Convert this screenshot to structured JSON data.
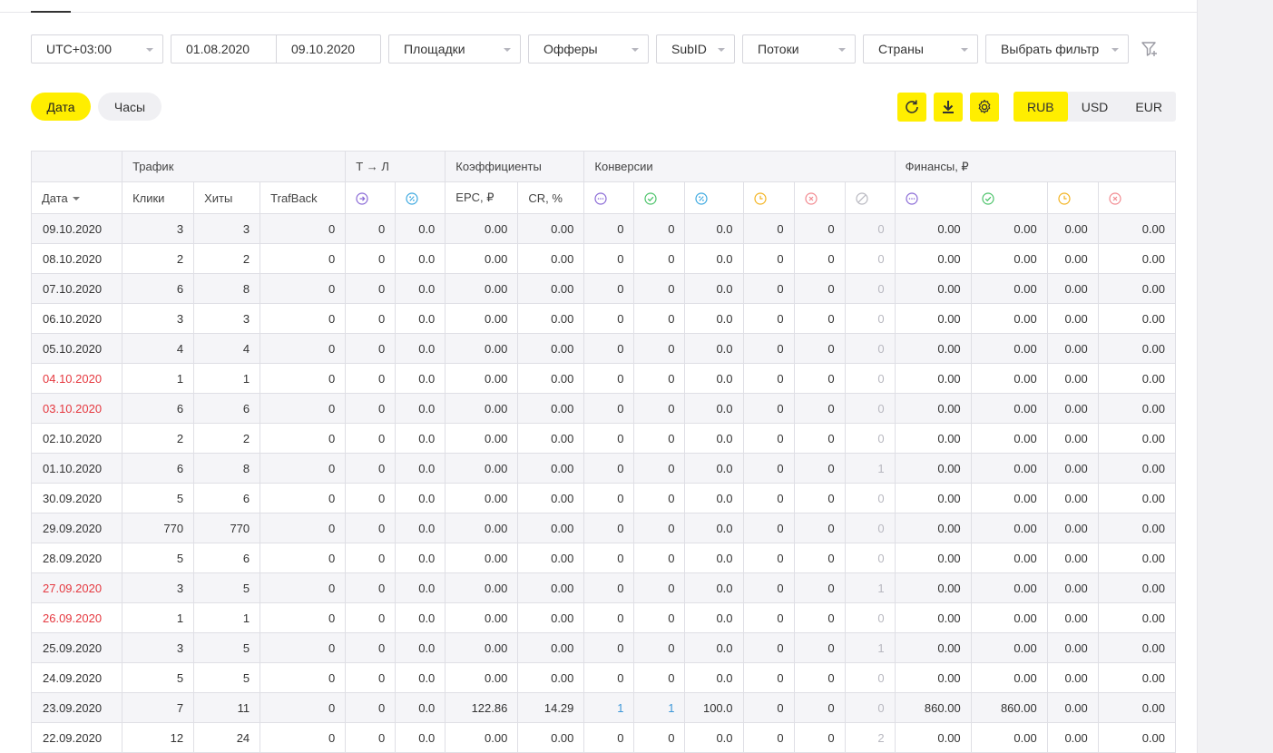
{
  "filters": {
    "timezone": "UTC+03:00",
    "date_from": "01.08.2020",
    "date_to": "09.10.2020",
    "sites": "Площадки",
    "offers": "Офферы",
    "subid": "SubID",
    "streams": "Потоки",
    "countries": "Страны",
    "choose_filter": "Выбрать фильтр"
  },
  "grouping": {
    "date": "Дата",
    "hours": "Часы"
  },
  "currency": {
    "rub": "RUB",
    "usd": "USD",
    "eur": "EUR",
    "selected": "RUB"
  },
  "colors": {
    "accent": "#ffee00",
    "weekend": "#e5383f",
    "link": "#3d97d8",
    "purple": "#8a6ad6",
    "green": "#4cc36a",
    "blue": "#3da9e0",
    "orange": "#f3b320",
    "red": "#f28a90",
    "grey": "#b8b8c0"
  },
  "table": {
    "groups": {
      "traffic": "Трафик",
      "tl": "Т → Л",
      "coef": "Коэффициенты",
      "conv": "Конверсии",
      "finance": "Финансы, ₽"
    },
    "headers": {
      "date": "Дата",
      "clicks": "Клики",
      "hits": "Хиты",
      "trafback": "TrafBack",
      "epc": "EPC, ₽",
      "cr": "CR, %"
    },
    "header_icons": [
      "arrow-right-circle-icon",
      "percent-circle-icon",
      "dots-circle-icon",
      "check-circle-icon",
      "percent-circle-icon",
      "clock-circle-icon",
      "cross-circle-icon",
      "ban-circle-icon",
      "dots-circle-icon",
      "check-circle-icon",
      "clock-circle-icon",
      "cross-circle-icon"
    ],
    "rows": [
      {
        "date": "09.10.2020",
        "weekend": false,
        "cells": [
          "3",
          "3",
          "0",
          "0",
          "0.0",
          "0.00",
          "0.00",
          "0",
          "0",
          "0.0",
          "0",
          "0",
          "0",
          "0.00",
          "0.00",
          "0.00",
          "0.00"
        ]
      },
      {
        "date": "08.10.2020",
        "weekend": false,
        "cells": [
          "2",
          "2",
          "0",
          "0",
          "0.0",
          "0.00",
          "0.00",
          "0",
          "0",
          "0.0",
          "0",
          "0",
          "0",
          "0.00",
          "0.00",
          "0.00",
          "0.00"
        ]
      },
      {
        "date": "07.10.2020",
        "weekend": false,
        "cells": [
          "6",
          "8",
          "0",
          "0",
          "0.0",
          "0.00",
          "0.00",
          "0",
          "0",
          "0.0",
          "0",
          "0",
          "0",
          "0.00",
          "0.00",
          "0.00",
          "0.00"
        ]
      },
      {
        "date": "06.10.2020",
        "weekend": false,
        "cells": [
          "3",
          "3",
          "0",
          "0",
          "0.0",
          "0.00",
          "0.00",
          "0",
          "0",
          "0.0",
          "0",
          "0",
          "0",
          "0.00",
          "0.00",
          "0.00",
          "0.00"
        ]
      },
      {
        "date": "05.10.2020",
        "weekend": false,
        "cells": [
          "4",
          "4",
          "0",
          "0",
          "0.0",
          "0.00",
          "0.00",
          "0",
          "0",
          "0.0",
          "0",
          "0",
          "0",
          "0.00",
          "0.00",
          "0.00",
          "0.00"
        ]
      },
      {
        "date": "04.10.2020",
        "weekend": true,
        "cells": [
          "1",
          "1",
          "0",
          "0",
          "0.0",
          "0.00",
          "0.00",
          "0",
          "0",
          "0.0",
          "0",
          "0",
          "0",
          "0.00",
          "0.00",
          "0.00",
          "0.00"
        ]
      },
      {
        "date": "03.10.2020",
        "weekend": true,
        "cells": [
          "6",
          "6",
          "0",
          "0",
          "0.0",
          "0.00",
          "0.00",
          "0",
          "0",
          "0.0",
          "0",
          "0",
          "0",
          "0.00",
          "0.00",
          "0.00",
          "0.00"
        ]
      },
      {
        "date": "02.10.2020",
        "weekend": false,
        "cells": [
          "2",
          "2",
          "0",
          "0",
          "0.0",
          "0.00",
          "0.00",
          "0",
          "0",
          "0.0",
          "0",
          "0",
          "0",
          "0.00",
          "0.00",
          "0.00",
          "0.00"
        ]
      },
      {
        "date": "01.10.2020",
        "weekend": false,
        "cells": [
          "6",
          "8",
          "0",
          "0",
          "0.0",
          "0.00",
          "0.00",
          "0",
          "0",
          "0.0",
          "0",
          "0",
          "1",
          "0.00",
          "0.00",
          "0.00",
          "0.00"
        ]
      },
      {
        "date": "30.09.2020",
        "weekend": false,
        "cells": [
          "5",
          "6",
          "0",
          "0",
          "0.0",
          "0.00",
          "0.00",
          "0",
          "0",
          "0.0",
          "0",
          "0",
          "0",
          "0.00",
          "0.00",
          "0.00",
          "0.00"
        ]
      },
      {
        "date": "29.09.2020",
        "weekend": false,
        "cells": [
          "770",
          "770",
          "0",
          "0",
          "0.0",
          "0.00",
          "0.00",
          "0",
          "0",
          "0.0",
          "0",
          "0",
          "0",
          "0.00",
          "0.00",
          "0.00",
          "0.00"
        ]
      },
      {
        "date": "28.09.2020",
        "weekend": false,
        "cells": [
          "5",
          "6",
          "0",
          "0",
          "0.0",
          "0.00",
          "0.00",
          "0",
          "0",
          "0.0",
          "0",
          "0",
          "0",
          "0.00",
          "0.00",
          "0.00",
          "0.00"
        ]
      },
      {
        "date": "27.09.2020",
        "weekend": true,
        "cells": [
          "3",
          "5",
          "0",
          "0",
          "0.0",
          "0.00",
          "0.00",
          "0",
          "0",
          "0.0",
          "0",
          "0",
          "1",
          "0.00",
          "0.00",
          "0.00",
          "0.00"
        ]
      },
      {
        "date": "26.09.2020",
        "weekend": true,
        "cells": [
          "1",
          "1",
          "0",
          "0",
          "0.0",
          "0.00",
          "0.00",
          "0",
          "0",
          "0.0",
          "0",
          "0",
          "0",
          "0.00",
          "0.00",
          "0.00",
          "0.00"
        ]
      },
      {
        "date": "25.09.2020",
        "weekend": false,
        "cells": [
          "3",
          "5",
          "0",
          "0",
          "0.0",
          "0.00",
          "0.00",
          "0",
          "0",
          "0.0",
          "0",
          "0",
          "1",
          "0.00",
          "0.00",
          "0.00",
          "0.00"
        ]
      },
      {
        "date": "24.09.2020",
        "weekend": false,
        "cells": [
          "5",
          "5",
          "0",
          "0",
          "0.0",
          "0.00",
          "0.00",
          "0",
          "0",
          "0.0",
          "0",
          "0",
          "0",
          "0.00",
          "0.00",
          "0.00",
          "0.00"
        ]
      },
      {
        "date": "23.09.2020",
        "weekend": false,
        "cells": [
          "7",
          "11",
          "0",
          "0",
          "0.0",
          "122.86",
          "14.29",
          "1",
          "1",
          "100.0",
          "0",
          "0",
          "0",
          "860.00",
          "860.00",
          "0.00",
          "0.00"
        ]
      },
      {
        "date": "22.09.2020",
        "weekend": false,
        "cells": [
          "12",
          "24",
          "0",
          "0",
          "0.0",
          "0.00",
          "0.00",
          "0",
          "0",
          "0.0",
          "0",
          "0",
          "2",
          "0.00",
          "0.00",
          "0.00",
          "0.00"
        ]
      },
      {
        "date": "",
        "weekend": false,
        "cells": [
          "",
          "",
          "",
          "",
          "",
          "",
          "",
          "",
          "",
          "",
          "",
          "",
          "",
          "",
          "",
          "",
          ""
        ]
      }
    ]
  }
}
